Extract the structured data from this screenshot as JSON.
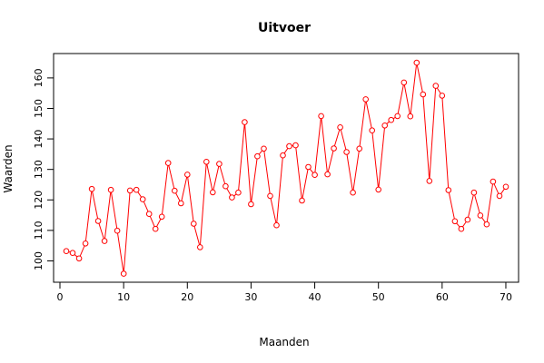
{
  "chart_data": {
    "type": "line",
    "title": "Uitvoer",
    "xlabel": "Maanden",
    "ylabel": "Waarden",
    "xlim": [
      -1,
      72
    ],
    "ylim": [
      93,
      168
    ],
    "x_ticks": [
      0,
      10,
      20,
      30,
      40,
      50,
      60,
      70
    ],
    "y_ticks": [
      100,
      110,
      120,
      130,
      140,
      150,
      160
    ],
    "grid": false,
    "legend": "none",
    "series": [
      {
        "color": "#ff0000",
        "x": [
          1,
          2,
          3,
          4,
          5,
          6,
          7,
          8,
          9,
          10,
          11,
          12,
          13,
          14,
          15,
          16,
          17,
          18,
          19,
          20,
          21,
          22,
          23,
          24,
          25,
          26,
          27,
          28,
          29,
          30,
          31,
          32,
          33,
          34,
          35,
          36,
          37,
          38,
          39,
          40,
          41,
          42,
          43,
          44,
          45,
          46,
          47,
          48,
          49,
          50,
          51,
          52,
          53,
          54,
          55,
          56,
          57,
          58,
          59,
          60,
          61,
          62,
          63,
          64,
          65,
          66,
          67,
          68,
          69,
          70
        ],
        "values": [
          103.2,
          102.6,
          100.8,
          105.7,
          123.6,
          113.1,
          106.5,
          123.3,
          109.9,
          95.8,
          123.1,
          123.3,
          120.2,
          115.4,
          110.5,
          114.5,
          132.1,
          123.0,
          118.9,
          128.3,
          112.2,
          104.5,
          132.5,
          122.5,
          131.8,
          124.5,
          120.8,
          122.4,
          145.5,
          118.6,
          134.3,
          136.8,
          121.3,
          111.7,
          134.6,
          137.6,
          137.9,
          119.8,
          130.8,
          128.2,
          147.5,
          128.4,
          136.9,
          143.8,
          135.7,
          122.4,
          136.8,
          153.0,
          142.8,
          123.4,
          144.4,
          146.2,
          147.5,
          158.5,
          147.4,
          165.0,
          154.6,
          126.2,
          157.4,
          154.2,
          123.2,
          113.0,
          110.5,
          113.5,
          122.4,
          114.9,
          112.0,
          126.0,
          121.3,
          124.3
        ]
      }
    ]
  }
}
